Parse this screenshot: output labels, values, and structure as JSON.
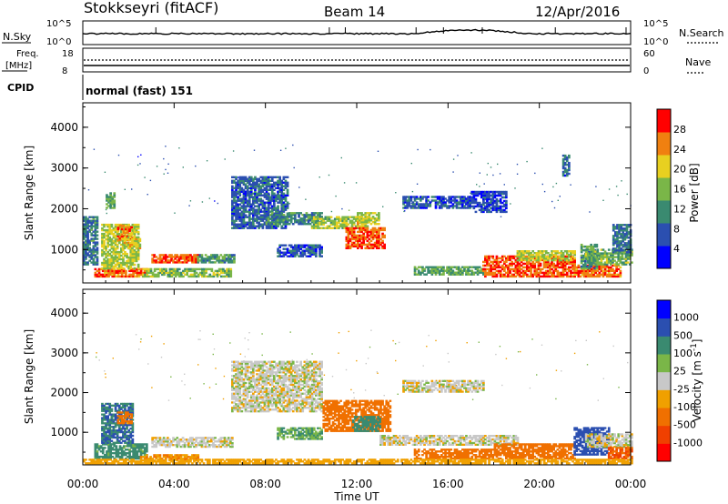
{
  "header": {
    "station": "Stokkseyri (fitACF)",
    "beam": "Beam 14",
    "date": "12/Apr/2016"
  },
  "strip_labels": {
    "nsky": "N.Sky",
    "nsky_ticks": [
      "10^5",
      "10^0"
    ],
    "nsearch": "N.Search",
    "nsearch_ticks": [
      "10^5",
      "10^0"
    ],
    "freq": "Freq.",
    "freq_unit": "[MHz]",
    "freq_ticks": [
      "18",
      "8"
    ],
    "nave": "Nave",
    "nave_ticks": [
      "60",
      "0"
    ],
    "cpid": "CPID",
    "cpid_value": "normal (fast) 151"
  },
  "axes": {
    "ylabel": "Slant Range [km]",
    "xlabel": "Time UT",
    "yticks": [
      "4000",
      "3000",
      "2000",
      "1000"
    ],
    "xticks": [
      "00:00",
      "04:00",
      "08:00",
      "12:00",
      "16:00",
      "20:00",
      "00:00"
    ]
  },
  "chart_data": [
    {
      "type": "heatmap",
      "name": "power",
      "x_range_hours": [
        0,
        24
      ],
      "y_range_km": [
        180,
        4600
      ],
      "colorbar_label": "Power [dB]",
      "colorbar_ticks": [
        "28",
        "24",
        "20",
        "16",
        "12",
        "8",
        "4"
      ],
      "colorbar_min": 0,
      "colorbar_max": 32,
      "colors": [
        "#0000ff",
        "#2b4fb0",
        "#3a8a70",
        "#7ab648",
        "#e8d020",
        "#f08010",
        "#ff0000"
      ],
      "regions": [
        {
          "t0": 0.5,
          "t1": 2.8,
          "r0": 300,
          "r1": 500,
          "v": 26
        },
        {
          "t0": 0.8,
          "t1": 2.4,
          "r0": 500,
          "r1": 1600,
          "v": 18
        },
        {
          "t0": 1.5,
          "t1": 2.1,
          "r0": 1200,
          "r1": 1600,
          "v": 25
        },
        {
          "t0": 1.7,
          "t1": 2.5,
          "r0": 1000,
          "r1": 1300,
          "v": 20
        },
        {
          "t0": 0.0,
          "t1": 0.6,
          "r0": 600,
          "r1": 1800,
          "v": 10
        },
        {
          "t0": 1.0,
          "t1": 1.4,
          "r0": 2000,
          "r1": 2400,
          "v": 14
        },
        {
          "t0": 2.6,
          "t1": 6.5,
          "r0": 300,
          "r1": 500,
          "v": 16
        },
        {
          "t0": 3.0,
          "t1": 5.0,
          "r0": 650,
          "r1": 850,
          "v": 27
        },
        {
          "t0": 5.0,
          "t1": 6.6,
          "r0": 650,
          "r1": 850,
          "v": 12
        },
        {
          "t0": 6.5,
          "t1": 9.0,
          "r0": 1500,
          "r1": 2800,
          "v": 8
        },
        {
          "t0": 8.0,
          "t1": 10.5,
          "r0": 1600,
          "r1": 1900,
          "v": 11
        },
        {
          "t0": 10.0,
          "t1": 12.5,
          "r0": 1500,
          "r1": 1800,
          "v": 17
        },
        {
          "t0": 11.5,
          "t1": 13.2,
          "r0": 1000,
          "r1": 1500,
          "v": 27
        },
        {
          "t0": 12.0,
          "t1": 13.0,
          "r0": 1600,
          "r1": 1900,
          "v": 19
        },
        {
          "t0": 8.5,
          "t1": 10.5,
          "r0": 800,
          "r1": 1100,
          "v": 7
        },
        {
          "t0": 14.0,
          "t1": 17.0,
          "r0": 2000,
          "r1": 2300,
          "v": 7
        },
        {
          "t0": 14.5,
          "t1": 17.5,
          "r0": 350,
          "r1": 550,
          "v": 14
        },
        {
          "t0": 17.5,
          "t1": 21.5,
          "r0": 300,
          "r1": 800,
          "v": 27
        },
        {
          "t0": 19.0,
          "t1": 21.5,
          "r0": 700,
          "r1": 950,
          "v": 18
        },
        {
          "t0": 21.5,
          "t1": 23.5,
          "r0": 300,
          "r1": 600,
          "v": 26
        },
        {
          "t0": 21.8,
          "t1": 22.5,
          "r0": 500,
          "r1": 1100,
          "v": 12
        },
        {
          "t0": 22.0,
          "t1": 24.0,
          "r0": 600,
          "r1": 1000,
          "v": 15
        },
        {
          "t0": 23.2,
          "t1": 24.0,
          "r0": 900,
          "r1": 1600,
          "v": 9
        },
        {
          "t0": 17.0,
          "t1": 18.5,
          "r0": 1900,
          "r1": 2400,
          "v": 6
        },
        {
          "t0": 21.0,
          "t1": 21.3,
          "r0": 2800,
          "r1": 3300,
          "v": 8
        }
      ]
    },
    {
      "type": "heatmap",
      "name": "velocity",
      "x_range_hours": [
        0,
        24
      ],
      "y_range_km": [
        180,
        4600
      ],
      "colorbar_label": "Velocity [m s^-1]",
      "colorbar_ticks": [
        "1000",
        "500",
        "100",
        "25",
        "-25",
        "-100",
        "-500",
        "-1000"
      ],
      "colors": [
        "#ff0000",
        "#f04000",
        "#f07000",
        "#f0a000",
        "#c8c8c8",
        "#7ab648",
        "#3a8a70",
        "#2b4fb0",
        "#0000ff"
      ],
      "color_levels": [
        -1000,
        -500,
        -100,
        -25,
        0,
        25,
        100,
        500,
        1000
      ],
      "regions": [
        {
          "t0": 0.5,
          "t1": 2.8,
          "r0": 300,
          "r1": 700,
          "v": 80
        },
        {
          "t0": 0.8,
          "t1": 2.2,
          "r0": 700,
          "r1": 1700,
          "v": 300
        },
        {
          "t0": 1.5,
          "t1": 2.1,
          "r0": 1200,
          "r1": 1500,
          "v": -80
        },
        {
          "t0": 3.0,
          "t1": 6.5,
          "r0": 600,
          "r1": 850,
          "v": 0
        },
        {
          "t0": 2.5,
          "t1": 5.0,
          "r0": 250,
          "r1": 400,
          "v": -60
        },
        {
          "t0": 6.5,
          "t1": 10.5,
          "r0": 1500,
          "r1": 2800,
          "v": 0
        },
        {
          "t0": 8.5,
          "t1": 10.5,
          "r0": 800,
          "r1": 1100,
          "v": 60
        },
        {
          "t0": 10.5,
          "t1": 13.5,
          "r0": 1000,
          "r1": 1800,
          "v": -150
        },
        {
          "t0": 11.8,
          "t1": 13.0,
          "r0": 1000,
          "r1": 1400,
          "v": 150
        },
        {
          "t0": 14.0,
          "t1": 17.5,
          "r0": 2000,
          "r1": 2300,
          "v": 0
        },
        {
          "t0": 14.5,
          "t1": 18.0,
          "r0": 300,
          "r1": 550,
          "v": -150
        },
        {
          "t0": 13.0,
          "t1": 19.0,
          "r0": 650,
          "r1": 900,
          "v": 0
        },
        {
          "t0": 18.0,
          "t1": 21.5,
          "r0": 300,
          "r1": 700,
          "v": -200
        },
        {
          "t0": 21.5,
          "t1": 23.0,
          "r0": 400,
          "r1": 1100,
          "v": 400
        },
        {
          "t0": 22.0,
          "t1": 24.0,
          "r0": 600,
          "r1": 950,
          "v": 0
        },
        {
          "t0": 23.0,
          "t1": 24.0,
          "r0": 300,
          "r1": 600,
          "v": -300
        },
        {
          "t0": 0.0,
          "t1": 24.0,
          "r0": 180,
          "r1": 280,
          "v": -40
        }
      ]
    }
  ]
}
